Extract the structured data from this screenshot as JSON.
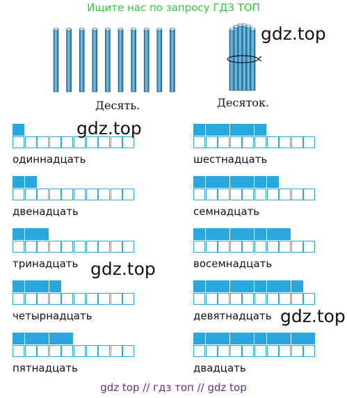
{
  "header": {
    "text": "Ищите нас по запросу ГДЗ ТОП"
  },
  "footer": {
    "text": "gdz top  //  гдз топ  //  gdz top"
  },
  "sticks": {
    "caption": "Десять."
  },
  "bundle": {
    "caption": "Десяток."
  },
  "watermarks": [
    "gdz.top",
    "gdz.top",
    "gdz.top",
    "gdz.top"
  ],
  "colors": {
    "cell": "#29a8e0",
    "header": "#35c43b",
    "footer": "#6a2a8c"
  },
  "numbers": [
    {
      "word": "одиннадцать",
      "ones": 1
    },
    {
      "word": "двенадцать",
      "ones": 2
    },
    {
      "word": "тринадцать",
      "ones": 3
    },
    {
      "word": "четырнадцать",
      "ones": 4
    },
    {
      "word": "пятнадцать",
      "ones": 5
    },
    {
      "word": "шестнадцать",
      "ones": 6
    },
    {
      "word": "семнадцать",
      "ones": 7
    },
    {
      "word": "восемнадцать",
      "ones": 8
    },
    {
      "word": "девятнадцать",
      "ones": 9
    },
    {
      "word": "двадцать",
      "ones": 10
    }
  ]
}
